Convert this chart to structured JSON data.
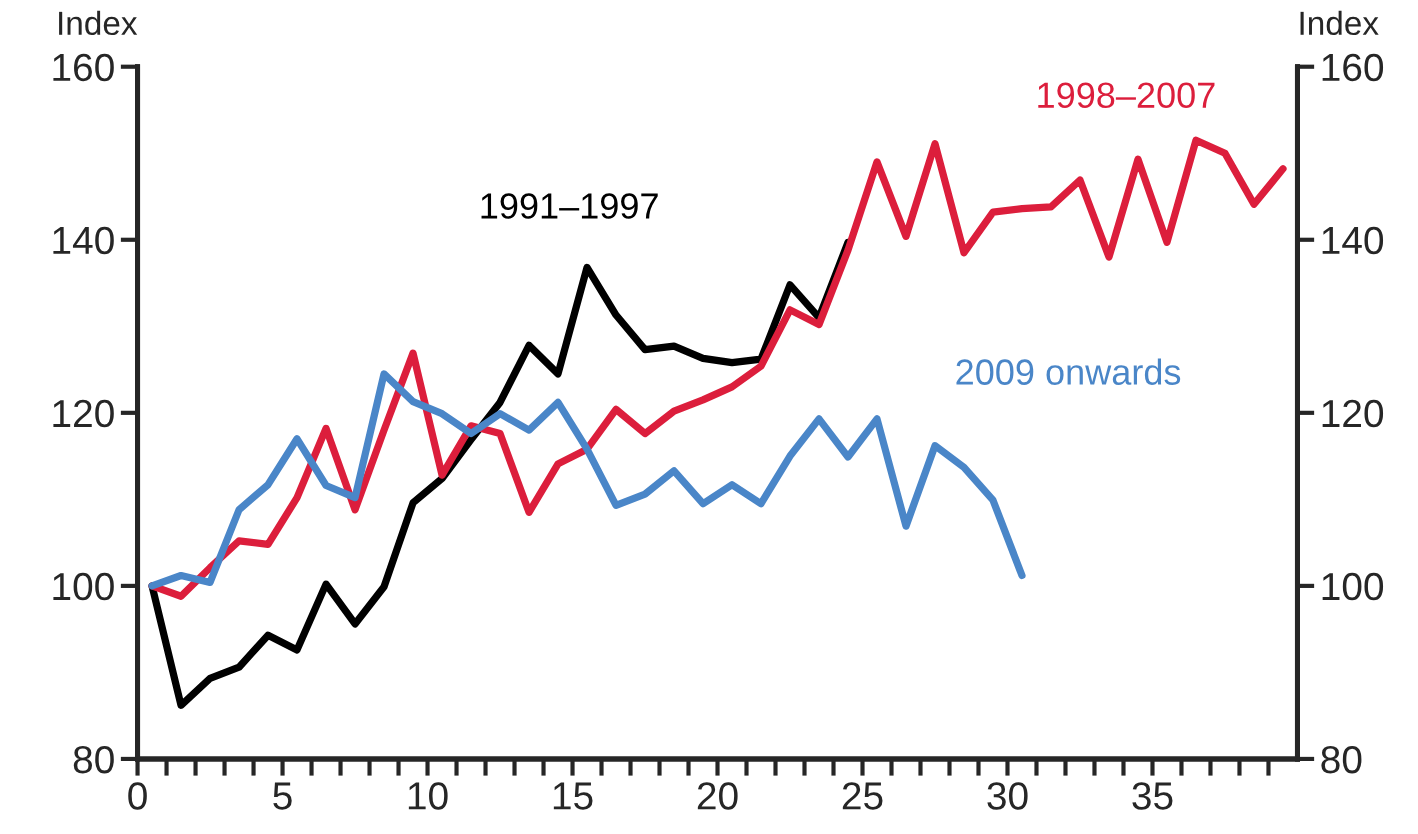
{
  "chart_data": {
    "type": "line",
    "ylabel": "Index",
    "y2label": "Index",
    "xlim": [
      0,
      40
    ],
    "ylim": [
      80,
      160
    ],
    "y2lim": [
      80,
      160
    ],
    "xticks": [
      0,
      {
        "value": 1,
        "label": null
      },
      {
        "value": 2,
        "label": null
      },
      {
        "value": 3,
        "label": null
      },
      {
        "value": 4,
        "label": null
      },
      5,
      {
        "value": 6,
        "label": null
      },
      {
        "value": 7,
        "label": null
      },
      {
        "value": 8,
        "label": null
      },
      {
        "value": 9,
        "label": null
      },
      10,
      {
        "value": 11,
        "label": null
      },
      {
        "value": 12,
        "label": null
      },
      {
        "value": 13,
        "label": null
      },
      {
        "value": 14,
        "label": null
      },
      15,
      {
        "value": 16,
        "label": null
      },
      {
        "value": 17,
        "label": null
      },
      {
        "value": 18,
        "label": null
      },
      {
        "value": 19,
        "label": null
      },
      20,
      {
        "value": 21,
        "label": null
      },
      {
        "value": 22,
        "label": null
      },
      {
        "value": 23,
        "label": null
      },
      {
        "value": 24,
        "label": null
      },
      25,
      {
        "value": 26,
        "label": null
      },
      {
        "value": 27,
        "label": null
      },
      {
        "value": 28,
        "label": null
      },
      {
        "value": 29,
        "label": null
      },
      30,
      {
        "value": 31,
        "label": null
      },
      {
        "value": 32,
        "label": null
      },
      {
        "value": 33,
        "label": null
      },
      {
        "value": 34,
        "label": null
      },
      35,
      {
        "value": 36,
        "label": null
      },
      {
        "value": 37,
        "label": null
      },
      {
        "value": 38,
        "label": null
      },
      {
        "value": 39,
        "label": null
      }
    ],
    "yticks": [
      80,
      100,
      120,
      140,
      160
    ],
    "y2ticks": [
      80,
      100,
      120,
      140,
      160
    ],
    "grid": false,
    "legend": false,
    "marker": "none",
    "line_style": "solid",
    "series": [
      {
        "name": "1991–1997",
        "color": "#000000",
        "x": [
          0.5,
          1.5,
          2.5,
          3.5,
          4.5,
          5.5,
          6.5,
          7.5,
          8.5,
          9.5,
          10.5,
          11.5,
          12.5,
          13.5,
          14.5,
          15.5,
          16.5,
          17.5,
          18.5,
          19.5,
          20.5,
          21.5,
          22.5,
          23.5,
          24.5
        ],
        "values": [
          100,
          86.2,
          89.3,
          90.6,
          94.3,
          92.6,
          100.2,
          95.6,
          99.9,
          109.6,
          112.4,
          116.9,
          121.2,
          127.8,
          124.5,
          136.8,
          131.3,
          127.3,
          127.7,
          126.3,
          125.8,
          126.2,
          134.8,
          131,
          139.7
        ]
      },
      {
        "name": "1998–2007",
        "color": "#dc1e3c",
        "x": [
          0.5,
          1.5,
          2.5,
          3.5,
          4.5,
          5.5,
          6.5,
          7.5,
          8.5,
          9.5,
          10.5,
          11.5,
          12.5,
          13.5,
          14.5,
          15.5,
          16.5,
          17.5,
          18.5,
          19.5,
          20.5,
          21.5,
          22.5,
          23.5,
          24.5,
          25.5,
          26.5,
          27.5,
          28.5,
          29.5,
          30.5,
          31.5,
          32.5,
          33.5,
          34.5,
          35.5,
          36.5,
          37.5,
          38.5,
          39.5
        ],
        "values": [
          100,
          98.8,
          102.1,
          105.2,
          104.8,
          110.2,
          118.2,
          108.8,
          118,
          126.9,
          112.8,
          118.5,
          117.6,
          108.5,
          114.1,
          115.8,
          120.4,
          117.6,
          120.2,
          121.5,
          123,
          125.4,
          131.9,
          130.2,
          138.8,
          149,
          140.4,
          151.1,
          138.5,
          143.2,
          143.6,
          143.8,
          146.9,
          138,
          149.3,
          139.7,
          151.5,
          150,
          144.1,
          148.2
        ]
      },
      {
        "name": "2009 onwards",
        "color": "#4a86c8",
        "x": [
          0.5,
          1.5,
          2.5,
          3.5,
          4.5,
          5.5,
          6.5,
          7.5,
          8.5,
          9.5,
          10.5,
          11.5,
          12.5,
          13.5,
          14.5,
          15.5,
          16.5,
          17.5,
          18.5,
          19.5,
          20.5,
          21.5,
          22.5,
          23.5,
          24.5,
          25.5,
          26.5,
          27.5,
          28.5,
          29.5,
          30.5
        ],
        "values": [
          100,
          101.2,
          100.4,
          108.8,
          111.7,
          117,
          111.6,
          110.2,
          124.5,
          121.3,
          119.9,
          117.6,
          119.9,
          118,
          121.2,
          115.8,
          109.3,
          110.6,
          113.3,
          109.5,
          111.7,
          109.5,
          115,
          119.3,
          114.9,
          119.3,
          106.9,
          116.2,
          113.7,
          109.9,
          101.2
        ]
      }
    ]
  }
}
